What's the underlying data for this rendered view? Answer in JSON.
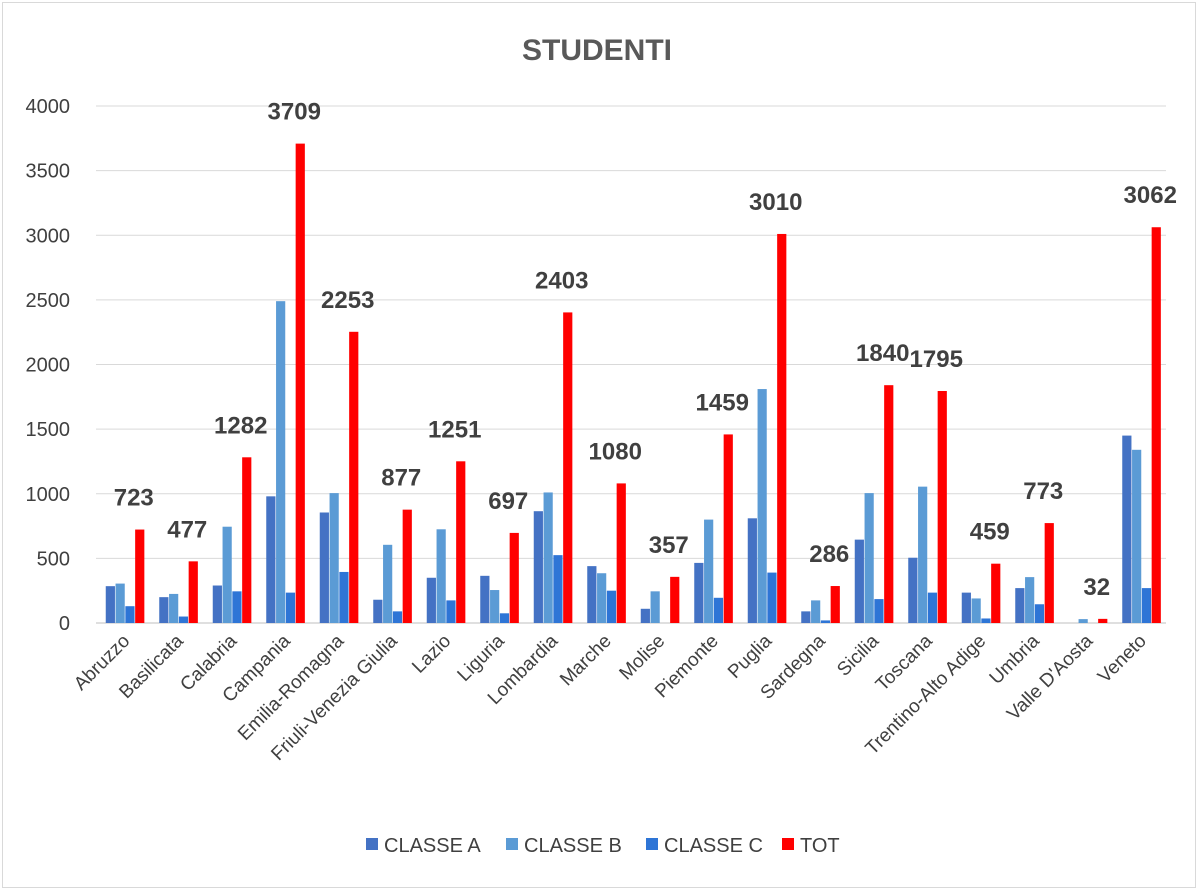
{
  "chart_data": {
    "type": "bar",
    "title": "STUDENTI",
    "xlabel": "",
    "ylabel": "",
    "ylim": [
      0,
      4000
    ],
    "yticks": [
      "0",
      "500",
      "1000",
      "1500",
      "2000",
      "2500",
      "3000",
      "3500",
      "4000"
    ],
    "grid": true,
    "legend_position": "bottom",
    "categories": [
      "Abruzzo",
      "Basilicata",
      "Calabria",
      "Campania",
      "Emilia-Romagna",
      "Friuli-Venezia Giulia",
      "Lazio",
      "Liguria",
      "Lombardia",
      "Marche",
      "Molise",
      "Piemonte",
      "Puglia",
      "Sardegna",
      "Sicilia",
      "Toscana",
      "Trentino-Alto Adige",
      "Umbria",
      "Valle D'Aosta",
      "Veneto"
    ],
    "series": [
      {
        "name": "CLASSE A",
        "color": "#4472C4",
        "values": [
          285,
          200,
          290,
          980,
          855,
          180,
          350,
          365,
          865,
          440,
          110,
          465,
          810,
          90,
          645,
          505,
          235,
          270,
          0,
          1450
        ]
      },
      {
        "name": "CLASSE B",
        "color": "#5B9BD5",
        "values": [
          305,
          225,
          745,
          2490,
          1005,
          605,
          725,
          255,
          1010,
          385,
          245,
          800,
          1810,
          175,
          1005,
          1055,
          190,
          355,
          30,
          1340
        ]
      },
      {
        "name": "CLASSE C",
        "color": "#2E75D6",
        "values": [
          130,
          50,
          245,
          235,
          395,
          90,
          175,
          75,
          525,
          250,
          0,
          195,
          390,
          20,
          185,
          235,
          35,
          145,
          0,
          270
        ]
      },
      {
        "name": "TOT",
        "color": "#FF0000",
        "values": [
          723,
          477,
          1282,
          3709,
          2253,
          877,
          1251,
          697,
          2403,
          1080,
          357,
          1459,
          3010,
          286,
          1840,
          1795,
          459,
          773,
          32,
          3062
        ]
      }
    ],
    "data_labels": [
      "723",
      "477",
      "1282",
      "3709",
      "2253",
      "877",
      "1251",
      "697",
      "2403",
      "1080",
      "357",
      "1459",
      "3010",
      "286",
      "1840",
      "1795",
      "459",
      "773",
      "32",
      "3062"
    ]
  }
}
